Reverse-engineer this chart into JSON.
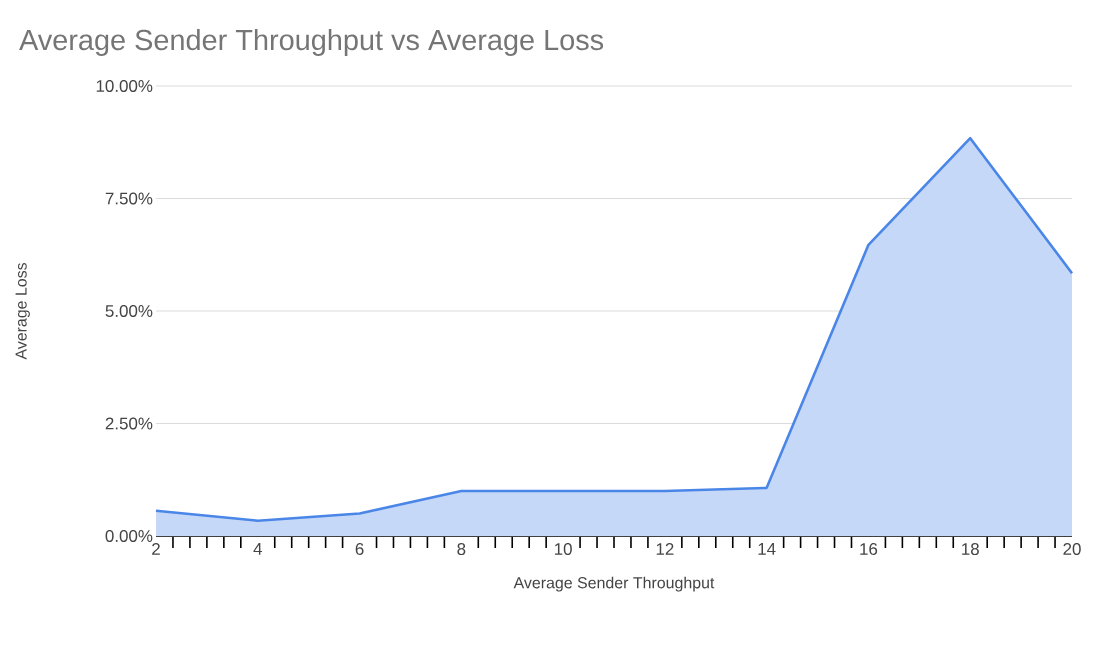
{
  "chart_data": {
    "type": "area",
    "title": "Average Sender Throughput vs Average Loss",
    "xlabel": "Average Sender Throughput",
    "ylabel": "Average Loss",
    "x": [
      2,
      4,
      6,
      8,
      10,
      12,
      14,
      16,
      18,
      20
    ],
    "series": [
      {
        "color": "#4a86e8",
        "values": [
          0.56,
          0.34,
          0.5,
          1.0,
          1.0,
          1.0,
          1.07,
          6.47,
          8.84,
          5.84
        ]
      }
    ],
    "xlim": [
      2,
      20
    ],
    "xticks": [
      2,
      4,
      6,
      8,
      10,
      12,
      14,
      16,
      18,
      20
    ],
    "ylim": [
      0,
      10
    ],
    "yticks": [
      {
        "value": 0,
        "label": "0.00%"
      },
      {
        "value": 2.5,
        "label": "2.50%"
      },
      {
        "value": 5,
        "label": "5.00%"
      },
      {
        "value": 7.5,
        "label": "7.50%"
      },
      {
        "value": 10,
        "label": "10.00%"
      }
    ],
    "grid": "y"
  }
}
